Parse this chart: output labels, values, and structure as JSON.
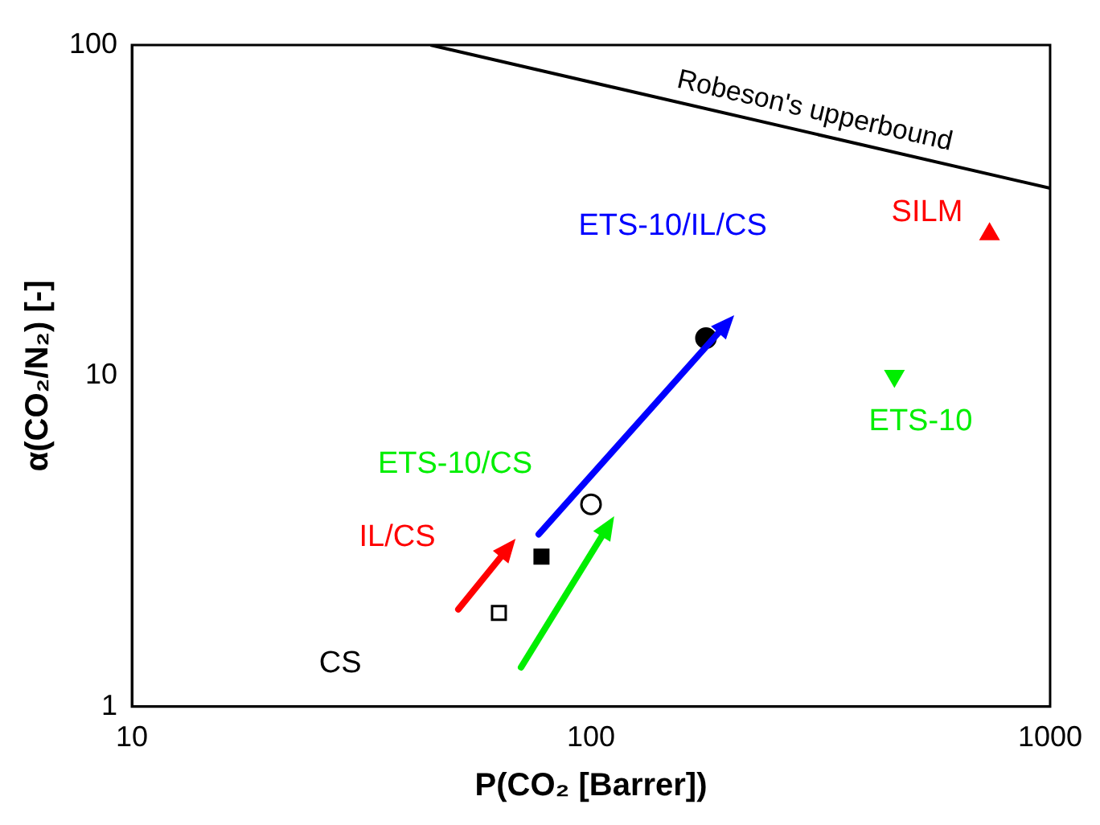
{
  "chart_data": {
    "type": "scatter",
    "xlabel": "P(CO₂ [Barrer])",
    "ylabel": "α(CO₂/N₂) [-]",
    "log": "xy",
    "xlim": [
      10,
      1000
    ],
    "xticks": [
      10,
      100,
      1000
    ],
    "ylim": [
      1,
      100
    ],
    "yticks": [
      1,
      10,
      100
    ],
    "grid": false,
    "legend": false,
    "series": [
      {
        "type": "line",
        "name": "Robeson's upperbound",
        "color": "#000000",
        "marker": "none",
        "x": [
          44.7,
          1000
        ],
        "values": [
          100,
          36.9
        ]
      },
      {
        "color": "#000000",
        "marker": "square",
        "x": [
          63
        ],
        "values": [
          1.92
        ]
      },
      {
        "color": "#000000",
        "marker": "square",
        "x": [
          78
        ],
        "values": [
          2.84
        ]
      },
      {
        "color": "#000000",
        "marker": "circle",
        "x": [
          100
        ],
        "values": [
          4.09
        ]
      },
      {
        "color": "#000000",
        "marker": "circle",
        "x": [
          178
        ],
        "values": [
          13.0
        ]
      },
      {
        "color": "#00ee00",
        "marker": "triangle",
        "x": [
          458
        ],
        "values": [
          10
        ]
      },
      {
        "color": "#ff0000",
        "marker": "triangle",
        "x": [
          738
        ],
        "values": [
          26.8
        ]
      }
    ],
    "annotations": [
      "SILM",
      "ETS-10/IL/CS",
      "ETS-10",
      "ETS-10/CS",
      "IL/CS",
      "CS"
    ]
  }
}
